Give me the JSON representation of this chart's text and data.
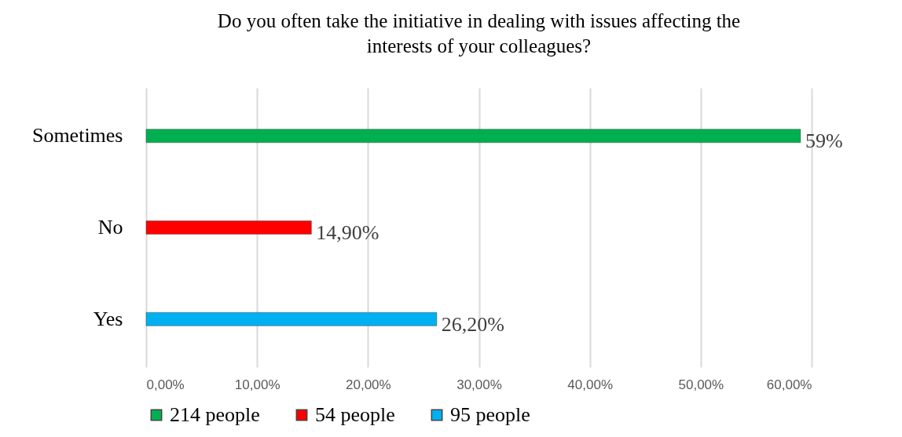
{
  "chart_data": {
    "type": "bar",
    "orientation": "horizontal",
    "title": "Do you often take the initiative in dealing with issues affecting the interests of your colleagues?",
    "categories": [
      "Sometimes",
      "No",
      "Yes"
    ],
    "series": [
      {
        "name": "214 people",
        "color": "#00b050",
        "values": [
          59,
          null,
          null
        ],
        "value_labels": [
          "59%",
          null,
          null
        ]
      },
      {
        "name": "54 people",
        "color": "#ff0000",
        "values": [
          null,
          14.9,
          null
        ],
        "value_labels": [
          null,
          "14,90%",
          null
        ]
      },
      {
        "name": "95 people",
        "color": "#00b0f0",
        "values": [
          null,
          null,
          26.2
        ],
        "value_labels": [
          null,
          null,
          "26,20%"
        ]
      }
    ],
    "xlim": [
      0,
      60
    ],
    "xticks": [
      {
        "value": 0,
        "label": "0,00%"
      },
      {
        "value": 10,
        "label": "10,00%"
      },
      {
        "value": 20,
        "label": "20,00%"
      },
      {
        "value": 30,
        "label": "30,00%"
      },
      {
        "value": 40,
        "label": "40,00%"
      },
      {
        "value": 50,
        "label": "50,00%"
      },
      {
        "value": 60,
        "label": "60,00%"
      }
    ],
    "grid": "x",
    "legend": "bottom"
  }
}
